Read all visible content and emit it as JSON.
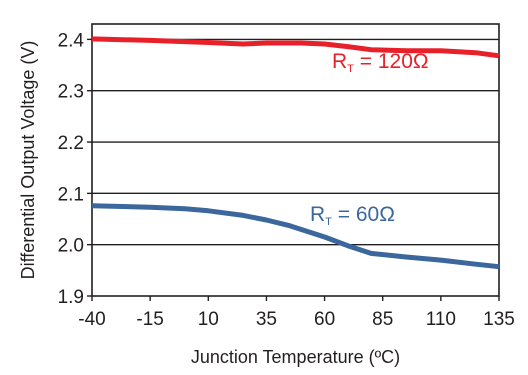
{
  "chart_data": {
    "type": "line",
    "xlabel": "Junction Temperature (ºC)",
    "ylabel": "Differential Output Voltage (V)",
    "x_ticks": [
      "-40",
      "-15",
      "10",
      "35",
      "60",
      "85",
      "110",
      "135"
    ],
    "y_ticks": [
      "1.9",
      "2.0",
      "2.1",
      "2.2",
      "2.3",
      "2.4"
    ],
    "xlim": [
      -40,
      135
    ],
    "ylim": [
      1.9,
      2.43
    ],
    "grid": "horizontal",
    "series": [
      {
        "name": "R_T = 120Ω",
        "label_main": "R",
        "label_sub": "T",
        "label_rest": " = 120Ω",
        "color": "#e8202a",
        "x": [
          -40,
          -15,
          10,
          25,
          35,
          50,
          60,
          70,
          80,
          95,
          110,
          125,
          135
        ],
        "y": [
          2.401,
          2.398,
          2.394,
          2.391,
          2.393,
          2.393,
          2.391,
          2.386,
          2.38,
          2.378,
          2.378,
          2.374,
          2.368
        ]
      },
      {
        "name": "R_T = 60Ω",
        "label_main": "R",
        "label_sub": "T",
        "label_rest": " = 60Ω",
        "color": "#3b679d",
        "x": [
          -40,
          -15,
          0,
          10,
          25,
          35,
          45,
          60,
          70,
          80,
          95,
          110,
          125,
          135
        ],
        "y": [
          2.076,
          2.073,
          2.07,
          2.066,
          2.057,
          2.048,
          2.037,
          2.015,
          1.998,
          1.983,
          1.976,
          1.97,
          1.962,
          1.957
        ]
      }
    ]
  }
}
